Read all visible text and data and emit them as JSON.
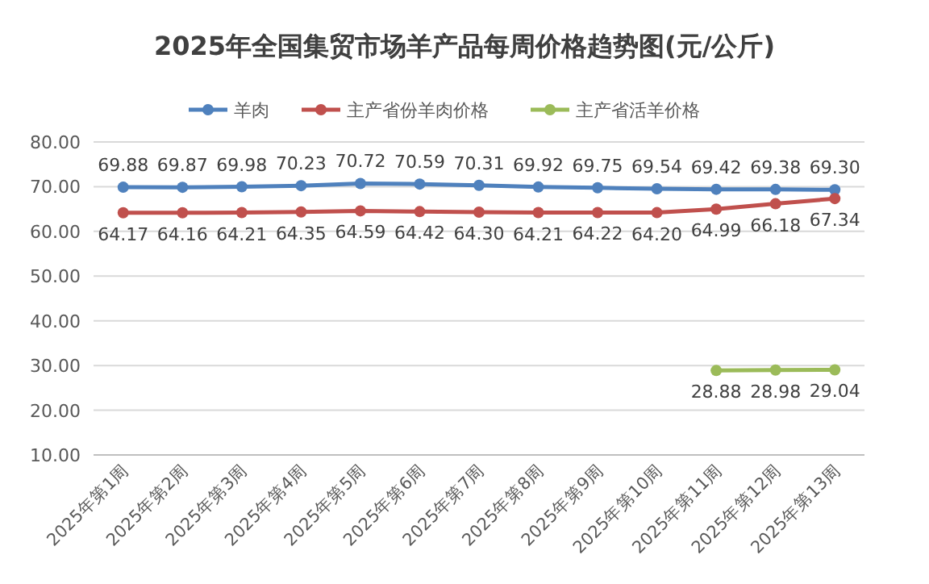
{
  "chart_data": {
    "type": "line",
    "title": "2025年全国集贸市场羊产品每周价格趋势图(元/公斤)",
    "categories": [
      "2025年第1周",
      "2025年第2周",
      "2025年第3周",
      "2025年第4周",
      "2025年第5周",
      "2025年第6周",
      "2025年第7周",
      "2025年第8周",
      "2025年第9周",
      "2025年第10周",
      "2025年第11周",
      "2025年第12周",
      "2025年第13周"
    ],
    "series": [
      {
        "name": "羊肉",
        "color": "#4f81bd",
        "values": [
          69.88,
          69.87,
          69.98,
          70.23,
          70.72,
          70.59,
          70.31,
          69.92,
          69.75,
          69.54,
          69.42,
          69.38,
          69.3
        ],
        "value_labels": [
          "69.88",
          "69.87",
          "69.98",
          "70.23",
          "70.72",
          "70.59",
          "70.31",
          "69.92",
          "69.75",
          "69.54",
          "69.42",
          "69.38",
          "69.30"
        ]
      },
      {
        "name": "主产省份羊肉价格",
        "color": "#c0504d",
        "values": [
          64.17,
          64.16,
          64.21,
          64.35,
          64.59,
          64.42,
          64.3,
          64.21,
          64.22,
          64.2,
          64.99,
          66.18,
          67.34
        ],
        "value_labels": [
          "64.17",
          "64.16",
          "64.21",
          "64.35",
          "64.59",
          "64.42",
          "64.30",
          "64.21",
          "64.22",
          "64.20",
          "64.99",
          "66.18",
          "67.34"
        ]
      },
      {
        "name": "主产省活羊价格",
        "color": "#9bbb59",
        "values": [
          null,
          null,
          null,
          null,
          null,
          null,
          null,
          null,
          null,
          null,
          28.88,
          28.98,
          29.04
        ],
        "value_labels": [
          null,
          null,
          null,
          null,
          null,
          null,
          null,
          null,
          null,
          null,
          "28.88",
          "28.98",
          "29.04"
        ]
      }
    ],
    "ylim": [
      10,
      80
    ],
    "yticks": [
      {
        "value": 10,
        "label": "10.00"
      },
      {
        "value": 20,
        "label": "20.00"
      },
      {
        "value": 30,
        "label": "30.00"
      },
      {
        "value": 40,
        "label": "40.00"
      },
      {
        "value": 50,
        "label": "50.00"
      },
      {
        "value": 60,
        "label": "60.00"
      },
      {
        "value": 70,
        "label": "70.00"
      },
      {
        "value": 80,
        "label": "80.00"
      }
    ],
    "grid": "y",
    "legend": "top",
    "marker": "circle",
    "line_style": "solid"
  }
}
